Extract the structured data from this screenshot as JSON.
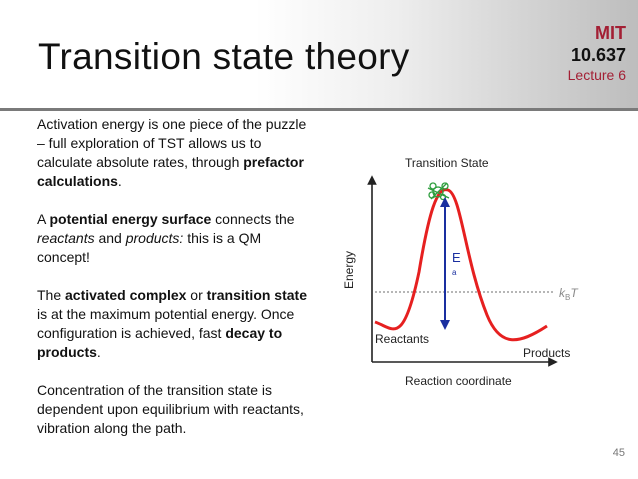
{
  "header": {
    "title": "Transition state theory",
    "institution": "MIT",
    "course_number": "10.637",
    "lecture": "Lecture 6"
  },
  "body": {
    "p1": [
      "Activation energy is one piece of the puzzle – full exploration of TST allows us to calculate absolute rates, through ",
      {
        "b": "prefactor calculations"
      },
      "."
    ],
    "p2": [
      "A ",
      {
        "b": "potential energy surface"
      },
      " connects the ",
      {
        "i": "reactants"
      },
      " and ",
      {
        "i": "products:"
      },
      " this is a QM concept!"
    ],
    "p3": [
      "The ",
      {
        "b": "activated complex"
      },
      " or ",
      {
        "b": "transition state"
      },
      " is at the maximum potential energy. Once configuration is achieved, fast ",
      {
        "b": "decay to products"
      },
      "."
    ],
    "p4": [
      "Concentration of the transition state is dependent upon equilibrium with reactants, vibration along the path."
    ]
  },
  "diagram": {
    "transition_state_label": "Transition State",
    "y_axis_label": "Energy",
    "x_axis_label": "Reaction coordinate",
    "reactants_label": "Reactants",
    "products_label": "Products",
    "activation_energy_letter": "E",
    "activation_energy_subscript": "a",
    "thermal_k": "k",
    "thermal_sub": "B",
    "thermal_T": "T",
    "curve_color": "#e62020",
    "arrow_color": "#1a2fa0",
    "ts_marker_color": "#2e9e3e",
    "accent_color": "#a31f34"
  },
  "page_number": "45"
}
